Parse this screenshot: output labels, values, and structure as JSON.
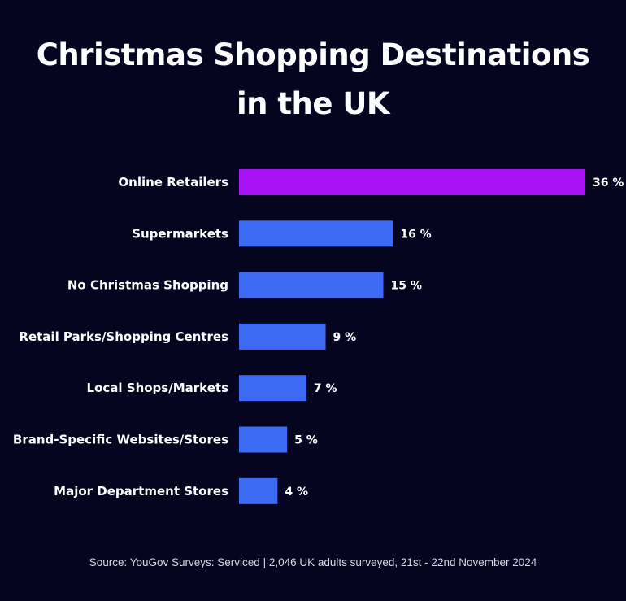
{
  "chart_data": {
    "type": "bar",
    "orientation": "horizontal",
    "title_lines": [
      "Christmas Shopping Destinations",
      "in the UK"
    ],
    "categories": [
      "Online Retailers",
      "Supermarkets",
      "No Christmas Shopping",
      "Retail Parks/Shopping Centres",
      "Local Shops/Markets",
      "Brand-Specific Websites/Stores",
      "Major Department Stores"
    ],
    "values": [
      36,
      16,
      15,
      9,
      7,
      5,
      4
    ],
    "value_labels": [
      "36 %",
      "16 %",
      "15 %",
      "9 %",
      "7 %",
      "5 %",
      "4 %"
    ],
    "colors": [
      "#a912f5",
      "#3d6af5",
      "#3d6af5",
      "#3d6af5",
      "#3d6af5",
      "#3d6af5",
      "#3d6af5"
    ],
    "xlim": [
      0,
      36
    ],
    "grid": false,
    "legend": "none",
    "source": "Source: YouGov Surveys: Serviced | 2,046 UK adults surveyed, 21st - 22nd November 2024"
  },
  "background_color": "#050520"
}
